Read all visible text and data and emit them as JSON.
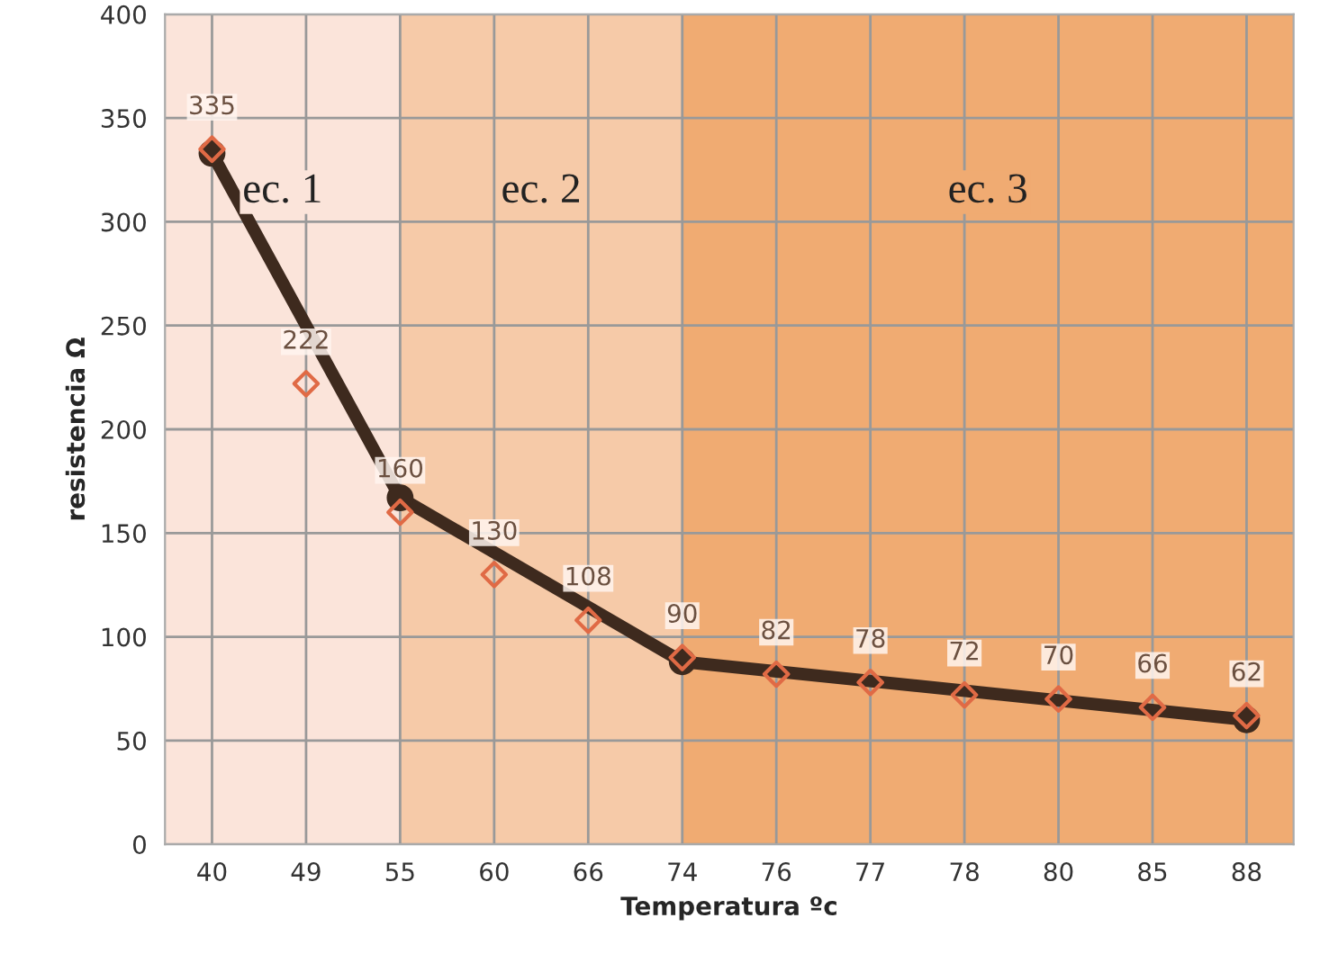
{
  "chart_data": {
    "type": "line",
    "xlabel": "Temperatura ºc",
    "ylabel": "resistencia Ω",
    "categories": [
      "40",
      "49",
      "55",
      "60",
      "66",
      "74",
      "76",
      "77",
      "78",
      "80",
      "85",
      "88"
    ],
    "series": [
      {
        "type": "scatter",
        "color": "#e06a45",
        "marker": "diamond",
        "values": [
          335,
          222,
          160,
          130,
          108,
          90,
          82,
          78,
          72,
          70,
          66,
          62
        ],
        "value_labels": [
          "335",
          "222",
          "160",
          "130",
          "108",
          "90",
          "82",
          "78",
          "72",
          "70",
          "66",
          "62"
        ]
      },
      {
        "color": "#3e2a1e",
        "marker": "circle",
        "values": [
          333,
          null,
          167,
          null,
          null,
          88,
          null,
          null,
          null,
          null,
          null,
          60
        ]
      }
    ],
    "bands": [
      {
        "axis": "x",
        "from": "40",
        "to": "55",
        "label": "ec. 1",
        "color": "#fbe4da"
      },
      {
        "axis": "x",
        "from": "55",
        "to": "74",
        "label": "ec. 2",
        "color": "#f6caa8"
      },
      {
        "axis": "x",
        "from": "74",
        "to": "88",
        "label": "ec. 3",
        "color": "#f0ab72"
      }
    ],
    "ylim": [
      0,
      400
    ],
    "yticks": [
      0,
      50,
      100,
      150,
      200,
      250,
      300,
      350,
      400
    ],
    "grid": true
  }
}
